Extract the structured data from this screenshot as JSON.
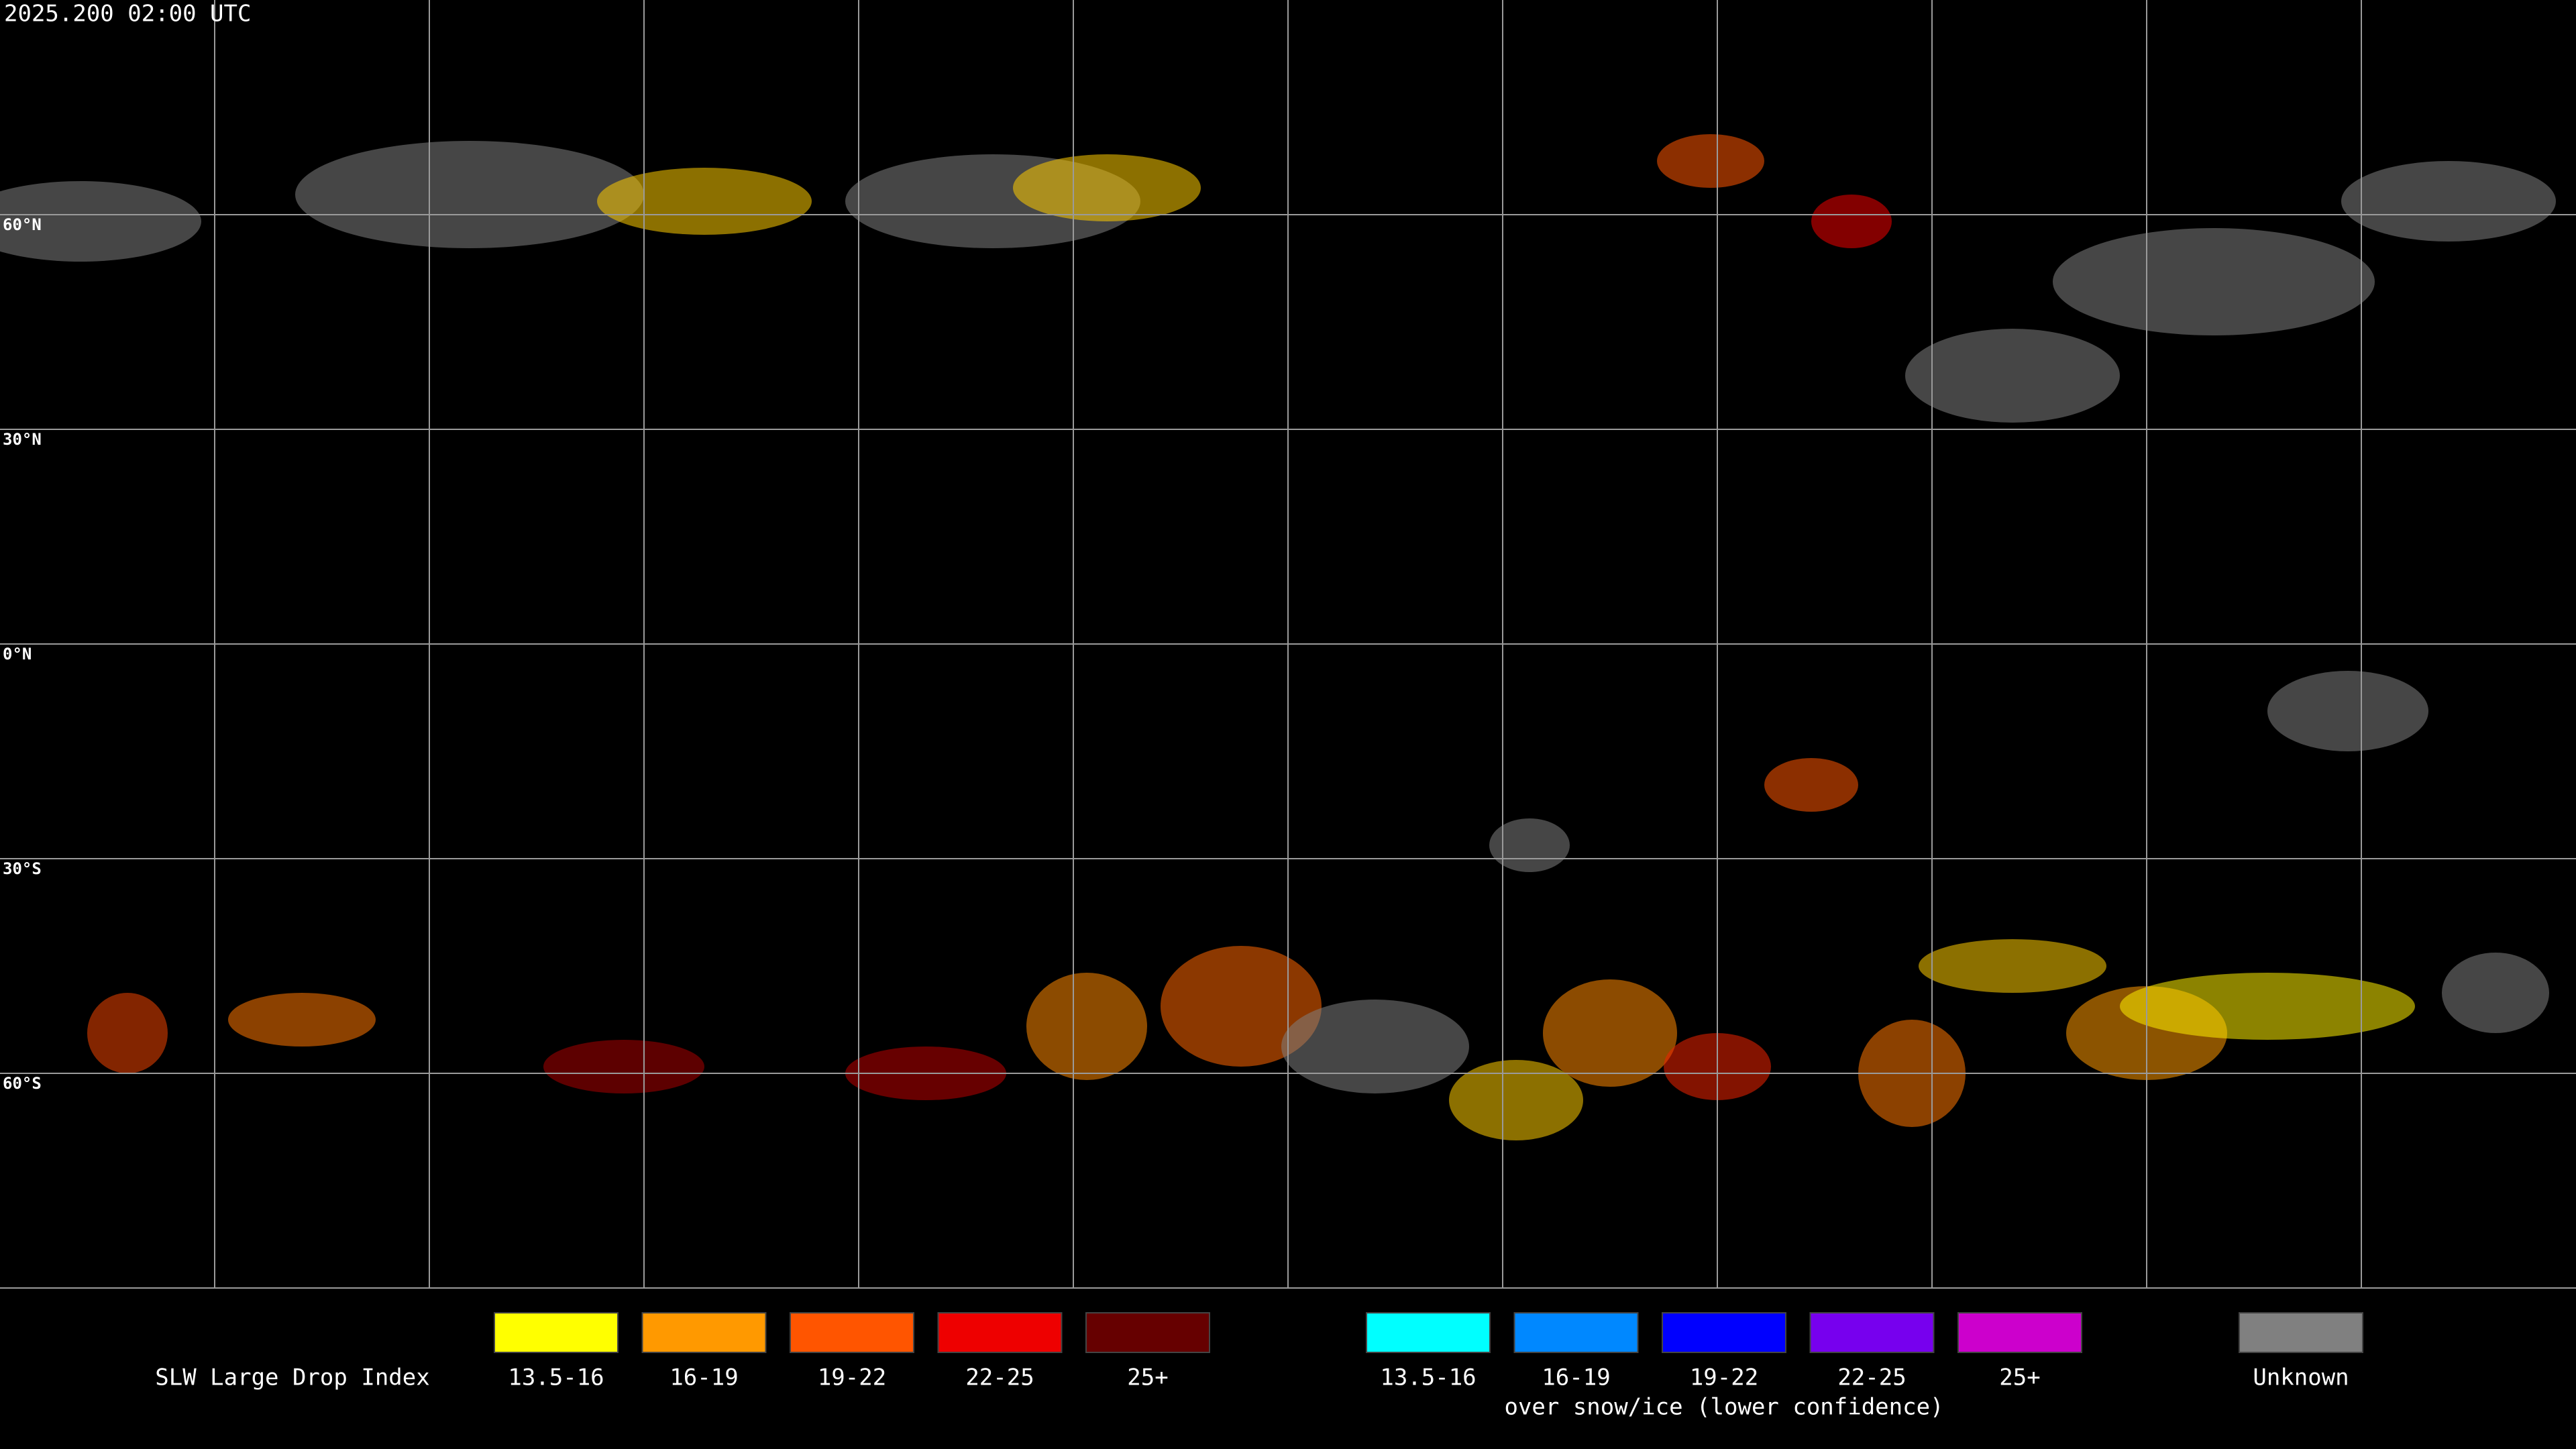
{
  "header": {
    "timestamp": "2025.200 02:00 UTC"
  },
  "map": {
    "latitude_labels": [
      "60°N",
      "30°N",
      "0°N",
      "30°S",
      "60°S"
    ]
  },
  "legend": {
    "title": "SLW Large Drop Index",
    "groups": [
      {
        "items": [
          {
            "label": "13.5-16",
            "color": "#ffff00"
          },
          {
            "label": "16-19",
            "color": "#ff9900"
          },
          {
            "label": "19-22",
            "color": "#ff5500"
          },
          {
            "label": "22-25",
            "color": "#ee0000"
          },
          {
            "label": "25+",
            "color": "#660000"
          }
        ]
      },
      {
        "items": [
          {
            "label": "13.5-16",
            "color": "#00ffff"
          },
          {
            "label": "16-19",
            "color": "#0088ff"
          },
          {
            "label": "19-22",
            "color": "#0000ff"
          },
          {
            "label": "22-25",
            "color": "#7700ee"
          },
          {
            "label": "25+",
            "color": "#cc00cc"
          }
        ],
        "caption": "over snow/ice (lower confidence)"
      }
    ],
    "unknown": {
      "label": "Unknown",
      "color": "#808080"
    }
  }
}
